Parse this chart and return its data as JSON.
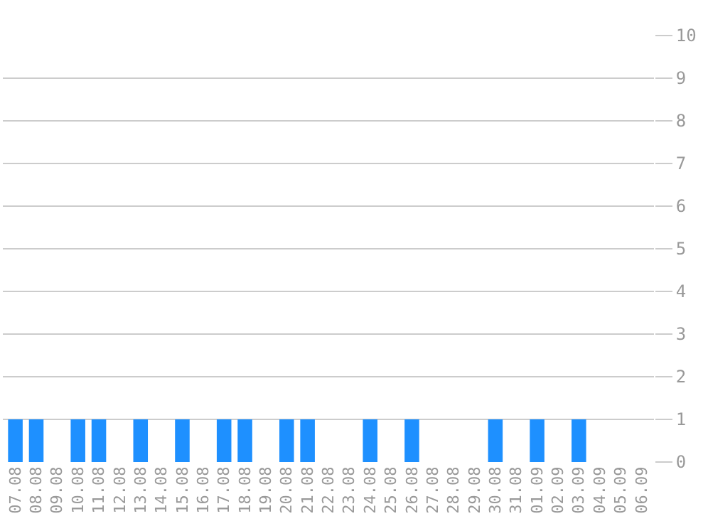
{
  "chart_data": {
    "type": "bar",
    "categories": [
      "07.08",
      "08.08",
      "09.08",
      "10.08",
      "11.08",
      "12.08",
      "13.08",
      "14.08",
      "15.08",
      "16.08",
      "17.08",
      "18.08",
      "19.08",
      "20.08",
      "21.08",
      "22.08",
      "23.08",
      "24.08",
      "25.08",
      "26.08",
      "27.08",
      "28.08",
      "29.08",
      "30.08",
      "31.08",
      "01.09",
      "02.09",
      "03.09",
      "04.09",
      "05.09",
      "06.09"
    ],
    "values": [
      1,
      1,
      0,
      1,
      1,
      0,
      1,
      0,
      1,
      0,
      1,
      1,
      0,
      1,
      1,
      0,
      0,
      1,
      0,
      1,
      0,
      0,
      0,
      1,
      0,
      1,
      0,
      1,
      0,
      0,
      0
    ],
    "color": "#1e90ff",
    "ylim": [
      0,
      10
    ],
    "yticks": [
      0,
      1,
      2,
      3,
      4,
      5,
      6,
      7,
      8,
      9,
      10
    ],
    "grid": "y"
  }
}
